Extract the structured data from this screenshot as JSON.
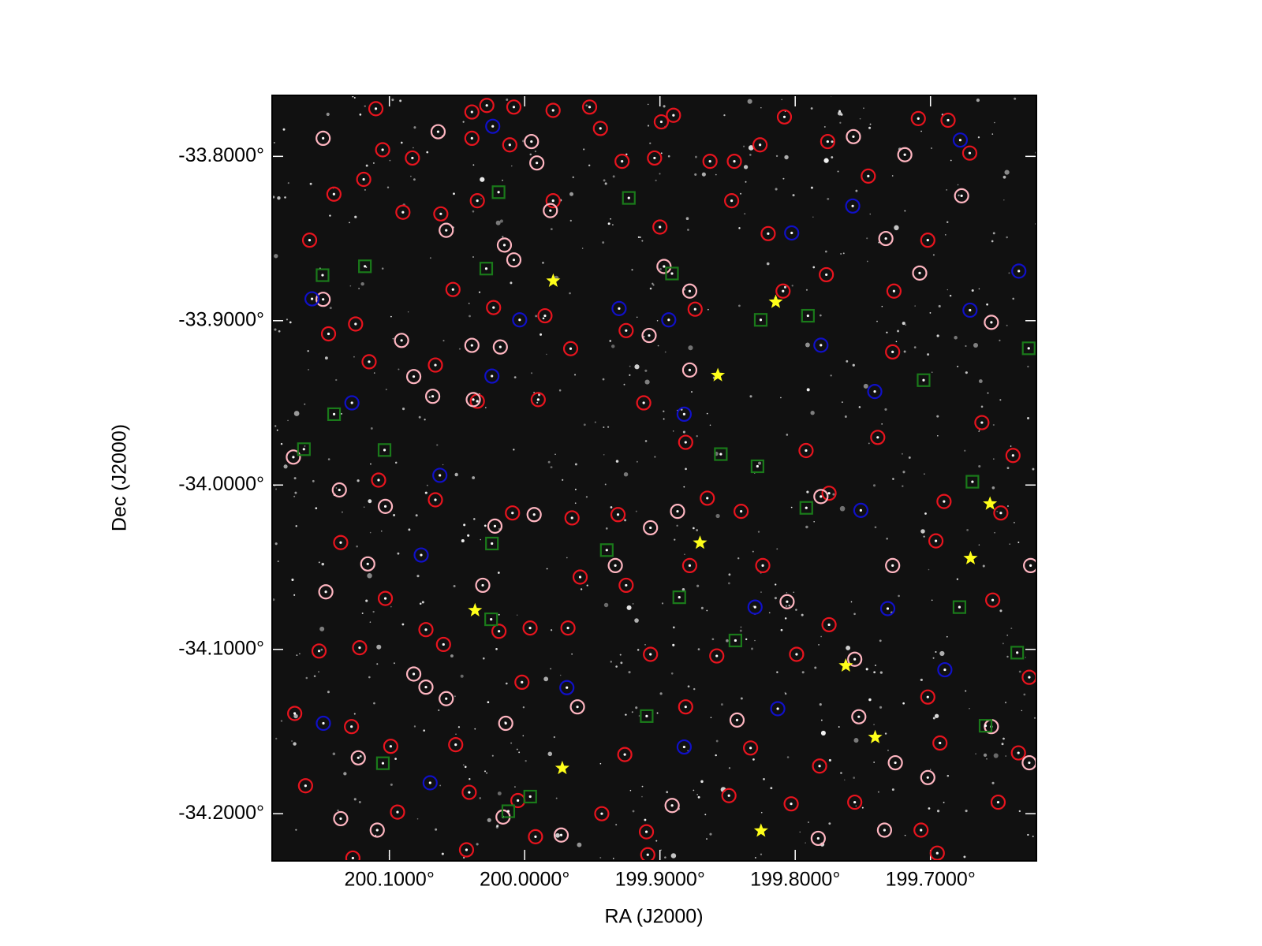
{
  "chart_data": {
    "type": "scatter",
    "xlabel": "RA (J2000)",
    "ylabel": "Dec (J2000)",
    "xlim": [
      200.1867,
      199.6217
    ],
    "ylim": [
      -34.2287,
      -33.7629
    ],
    "xticks": [
      {
        "value": 200.1,
        "label": "200.1000°"
      },
      {
        "value": 200.0,
        "label": "200.0000°"
      },
      {
        "value": 199.9,
        "label": "199.9000°"
      },
      {
        "value": 199.8,
        "label": "199.8000°"
      },
      {
        "value": 199.7,
        "label": "199.7000°"
      }
    ],
    "yticks": [
      {
        "value": -33.8,
        "label": "-33.8000°"
      },
      {
        "value": -33.9,
        "label": "-33.9000°"
      },
      {
        "value": -34.0,
        "label": "-34.0000°"
      },
      {
        "value": -34.1,
        "label": "-34.1000°"
      },
      {
        "value": -34.2,
        "label": "-34.2000°"
      }
    ],
    "series": [
      {
        "color": "#e8141e",
        "marker": "circle",
        "x": [
          200.11,
          200.039,
          200.028,
          200.008,
          199.979,
          199.952,
          199.899,
          199.89,
          200.105,
          200.083,
          200.039,
          200.011,
          199.944,
          199.928,
          199.904,
          199.863,
          199.845,
          199.826,
          199.808,
          199.776,
          199.709,
          199.687,
          199.671,
          200.141,
          200.119,
          200.09,
          200.062,
          200.035,
          199.979,
          199.9,
          199.847,
          199.82,
          199.746,
          199.702,
          200.159,
          200.053,
          200.023,
          199.985,
          199.966,
          199.925,
          199.874,
          199.809,
          199.777,
          199.727,
          199.728,
          200.145,
          200.125,
          200.115,
          200.066,
          200.035,
          199.99,
          199.912,
          199.881,
          199.792,
          199.739,
          199.662,
          199.639,
          200.108,
          200.066,
          200.009,
          199.965,
          199.931,
          199.865,
          199.84,
          199.775,
          199.69,
          199.648,
          200.136,
          200.103,
          200.073,
          199.996,
          199.959,
          199.925,
          199.878,
          199.824,
          199.775,
          199.696,
          199.654,
          200.152,
          200.122,
          200.06,
          200.019,
          199.968,
          199.907,
          199.858,
          199.799,
          199.702,
          199.627,
          200.17,
          200.128,
          200.099,
          200.051,
          200.002,
          199.926,
          199.881,
          199.833,
          199.782,
          199.693,
          199.635,
          200.162,
          200.094,
          200.041,
          200.005,
          199.943,
          199.91,
          199.849,
          199.803,
          199.756,
          199.707,
          199.65,
          200.127,
          200.043,
          199.992,
          199.909,
          199.695
        ],
        "y": [
          -33.771,
          -33.773,
          -33.769,
          -33.77,
          -33.772,
          -33.77,
          -33.779,
          -33.775,
          -33.796,
          -33.801,
          -33.789,
          -33.793,
          -33.783,
          -33.803,
          -33.801,
          -33.803,
          -33.803,
          -33.793,
          -33.776,
          -33.791,
          -33.777,
          -33.778,
          -33.798,
          -33.823,
          -33.814,
          -33.834,
          -33.835,
          -33.827,
          -33.827,
          -33.843,
          -33.827,
          -33.847,
          -33.812,
          -33.851,
          -33.851,
          -33.881,
          -33.892,
          -33.897,
          -33.917,
          -33.906,
          -33.893,
          -33.882,
          -33.872,
          -33.882,
          -33.919,
          -33.908,
          -33.902,
          -33.925,
          -33.927,
          -33.949,
          -33.948,
          -33.95,
          -33.974,
          -33.979,
          -33.971,
          -33.962,
          -33.982,
          -33.997,
          -34.009,
          -34.017,
          -34.02,
          -34.018,
          -34.008,
          -34.016,
          -34.005,
          -34.01,
          -34.017,
          -34.035,
          -34.069,
          -34.088,
          -34.087,
          -34.056,
          -34.061,
          -34.049,
          -34.049,
          -34.085,
          -34.034,
          -34.07,
          -34.101,
          -34.099,
          -34.097,
          -34.089,
          -34.087,
          -34.103,
          -34.104,
          -34.103,
          -34.129,
          -34.117,
          -34.139,
          -34.147,
          -34.159,
          -34.158,
          -34.12,
          -34.164,
          -34.135,
          -34.16,
          -34.171,
          -34.157,
          -34.163,
          -34.183,
          -34.199,
          -34.187,
          -34.192,
          -34.2,
          -34.211,
          -34.189,
          -34.194,
          -34.193,
          -34.21,
          -34.193,
          -34.227,
          -34.222,
          -34.214,
          -34.225,
          -34.224
        ]
      },
      {
        "color": "#ffb6c1",
        "marker": "circle",
        "x": [
          200.149,
          200.064,
          199.995,
          199.991,
          199.981,
          200.058,
          200.015,
          200.008,
          199.897,
          199.878,
          199.757,
          199.719,
          199.677,
          199.708,
          199.733,
          199.655,
          200.149,
          200.091,
          200.039,
          200.018,
          199.908,
          199.878,
          200.082,
          200.068,
          200.038,
          200.171,
          200.137,
          200.103,
          200.022,
          199.993,
          199.887,
          199.907,
          200.116,
          200.147,
          200.031,
          199.933,
          199.806,
          199.781,
          199.728,
          199.626,
          200.082,
          200.073,
          200.058,
          200.014,
          199.961,
          199.843,
          199.756,
          199.753,
          199.726,
          199.702,
          200.123,
          200.136,
          200.109,
          200.016,
          199.973,
          199.891,
          199.783,
          199.734,
          199.655,
          199.627
        ],
        "y": [
          -33.789,
          -33.785,
          -33.791,
          -33.804,
          -33.833,
          -33.845,
          -33.854,
          -33.863,
          -33.867,
          -33.882,
          -33.788,
          -33.799,
          -33.824,
          -33.871,
          -33.85,
          -33.901,
          -33.887,
          -33.912,
          -33.915,
          -33.916,
          -33.909,
          -33.93,
          -33.934,
          -33.946,
          -33.948,
          -33.983,
          -34.003,
          -34.013,
          -34.025,
          -34.018,
          -34.016,
          -34.026,
          -34.048,
          -34.065,
          -34.061,
          -34.049,
          -34.071,
          -34.007,
          -34.049,
          -34.049,
          -34.115,
          -34.123,
          -34.13,
          -34.145,
          -34.135,
          -34.143,
          -34.106,
          -34.141,
          -34.169,
          -34.178,
          -34.166,
          -34.203,
          -34.21,
          -34.202,
          -34.213,
          -34.195,
          -34.215,
          -34.21,
          -34.147,
          -34.169
        ]
      },
      {
        "color": "#1010c8",
        "marker": "circle",
        "x": [
          200.0236,
          199.678,
          199.7575,
          199.8026,
          200.1572,
          199.9302,
          200.0037,
          199.8935,
          199.6347,
          199.6708,
          199.781,
          200.0242,
          200.1277,
          199.7412,
          199.8821,
          200.0627,
          199.7515,
          200.0765,
          199.8297,
          199.7316,
          199.6894,
          199.9688,
          199.8129,
          200.1488,
          199.8821,
          200.0699
        ],
        "y": [
          -33.7817,
          -33.7901,
          -33.8302,
          -33.8466,
          -33.8867,
          -33.8926,
          -33.8995,
          -33.8995,
          -33.8698,
          -33.8936,
          -33.9149,
          -33.9337,
          -33.95,
          -33.9431,
          -33.9569,
          -33.9941,
          -34.0154,
          -34.0426,
          -34.0743,
          -34.0752,
          -34.1124,
          -34.1233,
          -34.1361,
          -34.145,
          -34.1594,
          -34.1812
        ]
      },
      {
        "color": "#1a7a1a",
        "marker": "square",
        "x": [
          200.0193,
          199.923,
          200.1181,
          200.1494,
          200.0284,
          199.8911,
          199.8255,
          199.7906,
          199.6274,
          199.7051,
          200.1409,
          200.1036,
          200.1632,
          199.855,
          199.8279,
          199.669,
          199.7918,
          200.0242,
          199.9393,
          199.8857,
          199.6786,
          200.0248,
          199.8442,
          199.6359,
          199.9098,
          199.6593,
          200.1048,
          199.9959,
          200.0121
        ],
        "y": [
          -33.8218,
          -33.8253,
          -33.8669,
          -33.8723,
          -33.8683,
          -33.8713,
          -33.8995,
          -33.897,
          -33.9168,
          -33.9362,
          -33.9569,
          -33.9787,
          -33.9782,
          -33.9812,
          -33.9886,
          -33.998,
          -34.0139,
          -34.0356,
          -34.0396,
          -34.0683,
          -34.0743,
          -34.0817,
          -34.0946,
          -34.102,
          -34.1406,
          -34.1465,
          -34.1693,
          -34.1896,
          -34.1985
        ]
      },
      {
        "color": "#ffff1a",
        "marker": "star",
        "x": [
          199.9789,
          199.8144,
          199.8572,
          200.0367,
          199.8704,
          199.656,
          199.6704,
          199.7626,
          199.7409,
          199.9722,
          199.8253
        ],
        "y": [
          -33.8758,
          -33.8886,
          -33.9332,
          -34.0763,
          -34.0352,
          -34.0114,
          -34.0446,
          -34.1099,
          -34.1535,
          -34.1723,
          -34.2104
        ]
      }
    ]
  }
}
